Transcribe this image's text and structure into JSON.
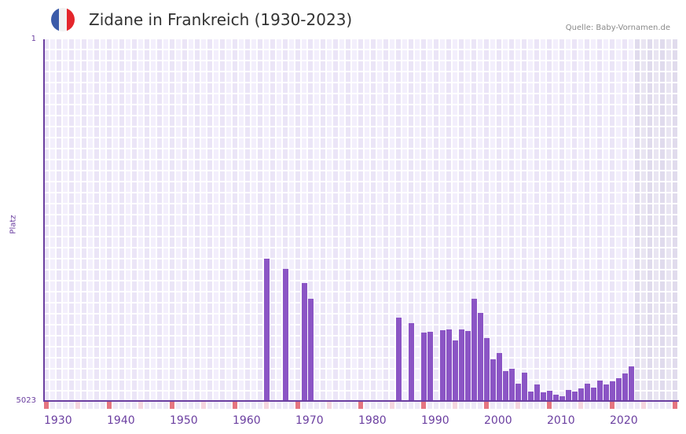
{
  "header": {
    "title": "Zidane in Frankreich (1930-2023)",
    "source": "Quelle: Baby-Vornamen.de",
    "flag_icon": "france-flag-icon",
    "flag_colors": [
      "#3b5ba9",
      "#f2f2f2",
      "#e4262b"
    ]
  },
  "colors": {
    "bar": "#8b55c5",
    "axis": "#6b3fa0",
    "grid_light": "#f3effc",
    "grid_dark": "#ebe5f7",
    "future_light": "#e9e5f2",
    "future_dark": "#e0dbed",
    "decade_marker": "#e57580",
    "half_decade_marker": "#f5d6df",
    "other_marker": "#eeeaf8"
  },
  "chart_data": {
    "type": "bar",
    "title": "Zidane in Frankreich (1930-2023)",
    "xlabel": "",
    "ylabel": "Platz",
    "ylim": [
      5023,
      1
    ],
    "y_inverted": true,
    "y_ticks": [
      "1",
      "5023"
    ],
    "x_ticks": [
      "1930",
      "1940",
      "1950",
      "1960",
      "1970",
      "1980",
      "1990",
      "2000",
      "2010",
      "2020"
    ],
    "x_range": [
      1930,
      2030
    ],
    "grid": true,
    "legend": null,
    "years": [
      1965,
      1968,
      1971,
      1972,
      1986,
      1988,
      1990,
      1991,
      1993,
      1994,
      1995,
      1996,
      1997,
      1998,
      1999,
      2000,
      2001,
      2002,
      2003,
      2004,
      2005,
      2006,
      2007,
      2008,
      2009,
      2010,
      2011,
      2012,
      2013,
      2014,
      2015,
      2016,
      2017,
      2018,
      2019,
      2020,
      2021,
      2022,
      2023
    ],
    "ranks": [
      3047,
      3189,
      3385,
      3604,
      3866,
      3943,
      4074,
      4063,
      4041,
      4030,
      4183,
      4030,
      4052,
      3604,
      3801,
      4150,
      4445,
      4358,
      4609,
      4576,
      4784,
      4631,
      4893,
      4795,
      4904,
      4882,
      4937,
      4958,
      4871,
      4893,
      4850,
      4784,
      4839,
      4740,
      4795,
      4751,
      4708,
      4642,
      4544
    ]
  }
}
